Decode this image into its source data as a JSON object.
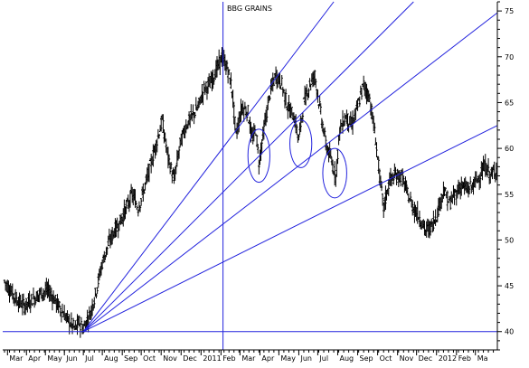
{
  "chart_data": {
    "type": "bar",
    "subtype": "ohlc-price-chart",
    "title": "BBG GRAINS",
    "xlabel": "",
    "ylabel": "",
    "ylim": [
      38,
      76
    ],
    "y_axis_position": "right",
    "y_ticks": [
      {
        "value": 75,
        "label": "75"
      },
      {
        "value": 70,
        "label": "70"
      },
      {
        "value": 65,
        "label": "65"
      },
      {
        "value": 60,
        "label": "60"
      },
      {
        "value": 55,
        "label": "55"
      },
      {
        "value": 50,
        "label": "50"
      },
      {
        "value": 45,
        "label": "45"
      },
      {
        "value": 40,
        "label": "40"
      }
    ],
    "x_range_months": [
      0,
      24.7
    ],
    "x_ticks": [
      {
        "m": 0.15,
        "label": "Mar"
      },
      {
        "m": 1.1,
        "label": "Apr"
      },
      {
        "m": 2.05,
        "label": "May"
      },
      {
        "m": 3.0,
        "label": "Jun"
      },
      {
        "m": 3.95,
        "label": "Jul"
      },
      {
        "m": 4.9,
        "label": "Aug"
      },
      {
        "m": 5.9,
        "label": "Sep"
      },
      {
        "m": 6.85,
        "label": "Oct"
      },
      {
        "m": 7.85,
        "label": "Nov"
      },
      {
        "m": 8.85,
        "label": "Dec"
      },
      {
        "m": 9.85,
        "label": "2011"
      },
      {
        "m": 10.85,
        "label": "Feb"
      },
      {
        "m": 11.8,
        "label": "Mar"
      },
      {
        "m": 12.8,
        "label": "Apr"
      },
      {
        "m": 13.75,
        "label": "May"
      },
      {
        "m": 14.75,
        "label": "Jun"
      },
      {
        "m": 15.7,
        "label": "Jul"
      },
      {
        "m": 16.7,
        "label": "Aug"
      },
      {
        "m": 17.7,
        "label": "Sep"
      },
      {
        "m": 18.7,
        "label": "Oct"
      },
      {
        "m": 19.7,
        "label": "Nov"
      },
      {
        "m": 20.65,
        "label": "Dec"
      },
      {
        "m": 21.65,
        "label": "2012"
      },
      {
        "m": 22.65,
        "label": "Feb"
      },
      {
        "m": 23.6,
        "label": "Ma"
      }
    ],
    "price_path": [
      [
        0,
        45.5
      ],
      [
        0.6,
        43.5
      ],
      [
        1.0,
        42.8
      ],
      [
        1.4,
        43.5
      ],
      [
        1.8,
        44.2
      ],
      [
        2.2,
        44.5
      ],
      [
        2.5,
        43.5
      ],
      [
        2.8,
        42.5
      ],
      [
        3.1,
        41.5
      ],
      [
        3.35,
        40.8
      ],
      [
        3.55,
        40.3
      ],
      [
        3.75,
        41.0
      ],
      [
        3.95,
        40.3
      ],
      [
        4.3,
        42.0
      ],
      [
        4.6,
        44.5
      ],
      [
        4.9,
        47.5
      ],
      [
        5.2,
        49.5
      ],
      [
        5.5,
        51.0
      ],
      [
        5.8,
        52.0
      ],
      [
        6.1,
        53.5
      ],
      [
        6.4,
        55.0
      ],
      [
        6.7,
        53.5
      ],
      [
        7.0,
        55.5
      ],
      [
        7.3,
        58.0
      ],
      [
        7.6,
        60.5
      ],
      [
        7.9,
        63.0
      ],
      [
        8.2,
        59.0
      ],
      [
        8.5,
        56.5
      ],
      [
        8.8,
        60.5
      ],
      [
        9.1,
        62.5
      ],
      [
        9.4,
        63.5
      ],
      [
        9.7,
        64.5
      ],
      [
        10.0,
        66.5
      ],
      [
        10.3,
        67.0
      ],
      [
        10.6,
        68.5
      ],
      [
        10.9,
        70.0
      ],
      [
        11.2,
        68.5
      ],
      [
        11.4,
        66.5
      ],
      [
        11.6,
        61.5
      ],
      [
        11.9,
        64.5
      ],
      [
        12.2,
        64.0
      ],
      [
        12.4,
        61.0
      ],
      [
        12.6,
        62.0
      ],
      [
        12.75,
        58.5
      ],
      [
        13.0,
        62.0
      ],
      [
        13.3,
        66.0
      ],
      [
        13.6,
        68.0
      ],
      [
        13.9,
        67.0
      ],
      [
        14.2,
        64.5
      ],
      [
        14.5,
        63.5
      ],
      [
        14.75,
        61.0
      ],
      [
        15.0,
        65.0
      ],
      [
        15.3,
        67.0
      ],
      [
        15.55,
        68.0
      ],
      [
        15.8,
        64.5
      ],
      [
        16.1,
        60.5
      ],
      [
        16.4,
        58.5
      ],
      [
        16.6,
        57.0
      ],
      [
        16.8,
        62.0
      ],
      [
        17.1,
        63.5
      ],
      [
        17.4,
        62.5
      ],
      [
        17.7,
        64.5
      ],
      [
        18.0,
        67.0
      ],
      [
        18.3,
        65.5
      ],
      [
        18.6,
        61.0
      ],
      [
        18.8,
        57.0
      ],
      [
        19.0,
        53.5
      ],
      [
        19.3,
        56.5
      ],
      [
        19.6,
        57.0
      ],
      [
        19.9,
        57.0
      ],
      [
        20.2,
        55.0
      ],
      [
        20.5,
        53.5
      ],
      [
        20.8,
        52.5
      ],
      [
        21.1,
        51.0
      ],
      [
        21.4,
        51.5
      ],
      [
        21.7,
        53.0
      ],
      [
        22.0,
        55.5
      ],
      [
        22.3,
        54.0
      ],
      [
        22.6,
        55.0
      ],
      [
        22.9,
        56.0
      ],
      [
        23.2,
        55.5
      ],
      [
        23.5,
        56.0
      ],
      [
        23.8,
        57.0
      ],
      [
        24.1,
        58.0
      ],
      [
        24.4,
        57.0
      ],
      [
        24.7,
        58.0
      ]
    ],
    "annotations": {
      "horizontal_line": {
        "y": 40
      },
      "vertical_line": {
        "m": 10.95
      },
      "fan_lines": [
        {
          "from": [
            3.95,
            40
          ],
          "to": [
            16.5,
            76
          ]
        },
        {
          "from": [
            3.95,
            40
          ],
          "to": [
            20.5,
            76
          ]
        },
        {
          "from": [
            3.95,
            40
          ],
          "to": [
            24.7,
            74.8
          ]
        },
        {
          "from": [
            3.95,
            40
          ],
          "to": [
            24.7,
            62.5
          ]
        }
      ],
      "ellipses": [
        {
          "cx": 12.75,
          "cy": 59.2,
          "rx": 0.55,
          "ry": 2.9
        },
        {
          "cx": 14.85,
          "cy": 60.5,
          "rx": 0.55,
          "ry": 2.6
        },
        {
          "cx": 16.55,
          "cy": 57.3,
          "rx": 0.6,
          "ry": 2.7
        }
      ]
    },
    "colors": {
      "price": "#000000",
      "annotation": "#2222dd",
      "axis": "#000000",
      "background": "#ffffff"
    },
    "grid": false,
    "legend": "none"
  }
}
